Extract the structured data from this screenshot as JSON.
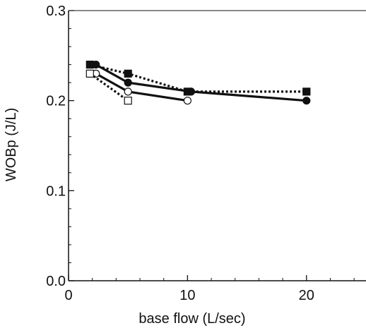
{
  "chart_data": {
    "type": "line",
    "xlabel": "base flow (L/sec)",
    "ylabel": "WOBp (J/L)",
    "xlim": [
      0,
      25
    ],
    "ylim": [
      0,
      0.3
    ],
    "xticks": [
      "0",
      "10",
      "20"
    ],
    "yticks": [
      "0.0",
      "0.1",
      "0.2",
      "0.3"
    ],
    "grid": false,
    "series": [
      {
        "marker": "filled-square",
        "line": "dotted",
        "color": "#111111",
        "x": [
          1.8,
          5,
          10,
          20
        ],
        "y": [
          0.24,
          0.23,
          0.21,
          0.21
        ]
      },
      {
        "marker": "filled-circle",
        "line": "solid",
        "color": "#111111",
        "x": [
          2.3,
          5,
          10.3,
          20
        ],
        "y": [
          0.24,
          0.22,
          0.21,
          0.2
        ]
      },
      {
        "marker": "open-circle",
        "line": "solid",
        "color": "#111111",
        "x": [
          2.3,
          5,
          10
        ],
        "y": [
          0.23,
          0.21,
          0.2
        ]
      },
      {
        "marker": "open-square",
        "line": "dotted",
        "color": "#111111",
        "x": [
          1.8,
          5
        ],
        "y": [
          0.23,
          0.2
        ]
      }
    ]
  }
}
